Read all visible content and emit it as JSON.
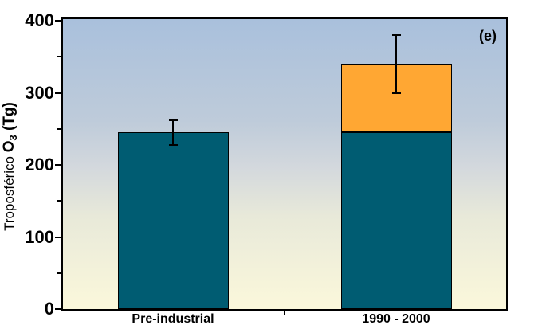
{
  "panel_label": "(e)",
  "ylabel": {
    "regular": "Troposférico ",
    "o": "O",
    "sub": "3",
    "units": " (Tg)"
  },
  "chart_data": {
    "type": "bar",
    "stacked": true,
    "title": "",
    "xlabel": "",
    "ylabel": "Troposférico O₃ (Tg)",
    "panel_label": "(e)",
    "categories": [
      "Pre-industrial",
      "1990 - 2000"
    ],
    "series": [
      {
        "key": "teal",
        "color": "#005C72",
        "values": [
          245,
          245
        ]
      },
      {
        "key": "orange",
        "color": "#FFA733",
        "values": [
          0,
          95
        ]
      }
    ],
    "totals": [
      245,
      340
    ],
    "error_bars": [
      {
        "low": 228,
        "high": 262
      },
      {
        "low": 300,
        "high": 380
      }
    ],
    "ylim": [
      0,
      400
    ],
    "yticks": [
      0,
      100,
      200,
      300,
      400
    ],
    "ytick_labels": [
      "0",
      "100",
      "200",
      "300",
      "400"
    ],
    "minor_tick_step": 50,
    "grid": false,
    "legend": "none",
    "background_gradient": {
      "direction": "top-to-bottom",
      "stops": [
        {
          "color": "#A9C0DC",
          "pos": 0
        },
        {
          "color": "#BECBDA",
          "pos": 35
        },
        {
          "color": "#D3D8DD",
          "pos": 51
        },
        {
          "color": "#E8E9D9",
          "pos": 68
        },
        {
          "color": "#FBF8DB",
          "pos": 100
        }
      ]
    },
    "bar_outline_color": "#000000",
    "error_bar_color": "#000000",
    "axis_color": "#000000"
  }
}
